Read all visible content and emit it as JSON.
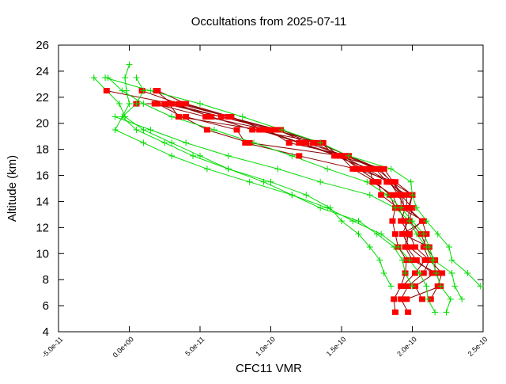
{
  "chart_data": {
    "type": "line",
    "title": "Occultations from 2025-07-11",
    "xlabel": "CFC11 VMR",
    "ylabel": "Altitude (km)",
    "xlim": [
      -5e-11,
      2.5e-10
    ],
    "ylim": [
      4,
      26
    ],
    "x_ticks": [
      -5e-11,
      0,
      5e-11,
      1e-10,
      1.5e-10,
      2e-10,
      2.5e-10
    ],
    "x_tick_labels": [
      "-5.0e-11",
      "0.0e+00",
      "5.0e-11",
      "1.0e-10",
      "1.5e-10",
      "2.0e-10",
      "2.5e-10"
    ],
    "y_ticks": [
      4,
      6,
      8,
      10,
      12,
      14,
      16,
      18,
      20,
      22,
      24,
      26
    ],
    "y_tick_labels": [
      "4",
      "6",
      "8",
      "10",
      "12",
      "14",
      "16",
      "18",
      "20",
      "22",
      "24",
      "26"
    ],
    "grid": false,
    "legend": "none",
    "colors": {
      "retrieval": "#ff0000",
      "apriori": "#00dd00",
      "profile_line": "#8b0000"
    },
    "series": [
      {
        "style": "red-square",
        "points": [
          [
            1.88e-10,
            5.5
          ],
          [
            1.87e-10,
            6.5
          ],
          [
            1.92e-10,
            7.5
          ],
          [
            1.95e-10,
            8.5
          ],
          [
            1.96e-10,
            9.5
          ],
          [
            1.9e-10,
            10.5
          ],
          [
            1.88e-10,
            11.5
          ],
          [
            1.86e-10,
            12.5
          ],
          [
            1.88e-10,
            13.5
          ],
          [
            1.84e-10,
            14.5
          ],
          [
            1.74e-10,
            15.5
          ],
          [
            1.58e-10,
            16.5
          ],
          [
            1.49e-10,
            17.5
          ],
          [
            1.21e-10,
            18.5
          ],
          [
            9.5e-11,
            19.5
          ],
          [
            7.2e-11,
            20.5
          ],
          [
            4e-11,
            21.5
          ],
          [
            2e-11,
            22.5
          ]
        ]
      },
      {
        "style": "red-square",
        "points": [
          [
            1.97e-10,
            5.5
          ],
          [
            1.92e-10,
            6.5
          ],
          [
            1.97e-10,
            7.5
          ],
          [
            2.08e-10,
            8.5
          ],
          [
            2.12e-10,
            9.5
          ],
          [
            2.02e-10,
            10.5
          ],
          [
            1.98e-10,
            11.5
          ],
          [
            1.92e-10,
            12.5
          ],
          [
            1.95e-10,
            13.5
          ],
          [
            1.9e-10,
            14.5
          ],
          [
            1.84e-10,
            15.5
          ],
          [
            1.68e-10,
            16.5
          ],
          [
            1.5e-10,
            17.5
          ],
          [
            1.3e-10,
            18.5
          ],
          [
            1.04e-10,
            19.5
          ],
          [
            7e-11,
            20.5
          ],
          [
            3.5e-11,
            21.5
          ],
          [
            9e-12,
            22.5
          ]
        ]
      },
      {
        "style": "red-square",
        "points": [
          [
            2.07e-10,
            6.5
          ],
          [
            2.02e-10,
            7.5
          ],
          [
            2.16e-10,
            8.5
          ],
          [
            2.16e-10,
            9.5
          ],
          [
            2.1e-10,
            10.5
          ],
          [
            2.06e-10,
            11.5
          ],
          [
            1.98e-10,
            12.5
          ],
          [
            2e-10,
            13.5
          ],
          [
            1.92e-10,
            14.5
          ],
          [
            1.86e-10,
            15.5
          ],
          [
            1.75e-10,
            16.5
          ],
          [
            1.55e-10,
            17.5
          ],
          [
            1.33e-10,
            18.5
          ],
          [
            1.07e-10,
            19.5
          ],
          [
            6.5e-11,
            20.5
          ],
          [
            3e-11,
            21.5
          ],
          [
            1.9e-11,
            22.5
          ]
        ]
      },
      {
        "style": "red-square",
        "points": [
          [
            2.13e-10,
            6.5
          ],
          [
            2.18e-10,
            7.5
          ],
          [
            2.21e-10,
            8.5
          ],
          [
            2.12e-10,
            9.5
          ],
          [
            2.08e-10,
            10.5
          ],
          [
            2.1e-10,
            11.5
          ],
          [
            2.07e-10,
            12.5
          ],
          [
            1.96e-10,
            13.5
          ],
          [
            1.96e-10,
            14.5
          ],
          [
            1.82e-10,
            15.5
          ],
          [
            1.74e-10,
            16.5
          ],
          [
            1.53e-10,
            17.5
          ],
          [
            1.25e-10,
            18.5
          ],
          [
            1.05e-10,
            19.5
          ],
          [
            7e-11,
            20.5
          ],
          [
            3.8e-11,
            21.5
          ],
          [
            5e-12,
            21.5
          ]
        ]
      },
      {
        "style": "red-square",
        "points": [
          [
            1.96e-10,
            6.5
          ],
          [
            2.2e-10,
            7.5
          ],
          [
            2.17e-10,
            8.5
          ],
          [
            2e-10,
            9.5
          ],
          [
            1.95e-10,
            10.5
          ],
          [
            1.96e-10,
            11.5
          ],
          [
            1.95e-10,
            12.5
          ],
          [
            1.9e-10,
            13.5
          ],
          [
            1.86e-10,
            14.5
          ],
          [
            1.72e-10,
            15.5
          ],
          [
            1.7e-10,
            16.5
          ],
          [
            1.45e-10,
            17.5
          ],
          [
            1.36e-10,
            18.5
          ],
          [
            8.7e-11,
            19.5
          ],
          [
            5.8e-11,
            20.5
          ],
          [
            3e-11,
            21.5
          ],
          [
            -1.6e-11,
            22.5
          ]
        ]
      },
      {
        "style": "red-square",
        "points": [
          [
            1.93e-10,
            7.5
          ],
          [
            2.02e-10,
            8.5
          ],
          [
            2.09e-10,
            9.5
          ],
          [
            1.98e-10,
            10.5
          ],
          [
            1.93e-10,
            11.5
          ],
          [
            2.08e-10,
            12.5
          ],
          [
            1.92e-10,
            13.5
          ],
          [
            1.92e-10,
            14.5
          ],
          [
            1.83e-10,
            15.5
          ],
          [
            1.65e-10,
            16.5
          ],
          [
            1.48e-10,
            17.5
          ],
          [
            1.37e-10,
            18.5
          ],
          [
            1.02e-10,
            19.5
          ],
          [
            6.5e-11,
            20.5
          ],
          [
            2.5e-11,
            21.5
          ]
        ]
      },
      {
        "style": "red-square",
        "points": [
          [
            2.14e-10,
            8.5
          ],
          [
            2.03e-10,
            9.5
          ],
          [
            1.96e-10,
            10.5
          ],
          [
            1.97e-10,
            11.5
          ],
          [
            2.07e-10,
            12.5
          ],
          [
            1.97e-10,
            13.5
          ],
          [
            2e-10,
            14.5
          ],
          [
            1.85e-10,
            15.5
          ],
          [
            1.77e-10,
            16.5
          ],
          [
            1.55e-10,
            17.5
          ],
          [
            1.13e-10,
            18.5
          ],
          [
            9.8e-11,
            19.5
          ],
          [
            5.4e-11,
            20.5
          ],
          [
            1.8e-11,
            21.5
          ]
        ]
      },
      {
        "style": "red-square",
        "points": [
          [
            2.12e-10,
            10.5
          ],
          [
            1.93e-10,
            11.5
          ],
          [
            1.97e-10,
            12.5
          ],
          [
            1.98e-10,
            13.5
          ],
          [
            2e-10,
            14.5
          ],
          [
            1.88e-10,
            15.5
          ],
          [
            1.6e-10,
            16.5
          ],
          [
            1.2e-10,
            17.5
          ],
          [
            8.2e-11,
            18.5
          ],
          [
            7.6e-11,
            19.5
          ],
          [
            4e-11,
            20.5
          ],
          [
            3.5e-11,
            20.5
          ]
        ]
      },
      {
        "style": "red-square",
        "points": [
          [
            1.9e-10,
            13.5
          ],
          [
            1.78e-10,
            14.5
          ],
          [
            1.76e-10,
            15.5
          ],
          [
            1.62e-10,
            16.5
          ],
          [
            1.5e-10,
            17.5
          ],
          [
            8.5e-11,
            18.5
          ],
          [
            5.5e-11,
            19.5
          ],
          [
            2e-11,
            21.5
          ]
        ]
      },
      {
        "style": "red-square",
        "points": [
          [
            1.94e-10,
            13.5
          ],
          [
            1.93e-10,
            14.5
          ],
          [
            1.8e-10,
            16.5
          ],
          [
            1.47e-10,
            17.5
          ],
          [
            1.2e-10,
            18.5
          ],
          [
            9.2e-11,
            19.5
          ],
          [
            3.5e-11,
            20.5
          ],
          [
            2.8e-11,
            21.5
          ]
        ]
      },
      {
        "style": "green-plus",
        "points": [
          [
            2.48e-10,
            7.5
          ],
          [
            2.39e-10,
            8.5
          ],
          [
            2.28e-10,
            9.5
          ],
          [
            2.26e-10,
            10.5
          ],
          [
            2.18e-10,
            11.5
          ],
          [
            2.1e-10,
            12.5
          ],
          [
            2.03e-10,
            13.5
          ],
          [
            2e-10,
            14.5
          ],
          [
            1.99e-10,
            15.5
          ],
          [
            1.85e-10,
            16.5
          ],
          [
            1.55e-10,
            17.5
          ],
          [
            1.35e-10,
            18.5
          ],
          [
            1.08e-10,
            19.5
          ],
          [
            8e-11,
            20.5
          ],
          [
            5e-11,
            21.5
          ],
          [
            1.5e-11,
            22.5
          ],
          [
            -1.7e-11,
            23.5
          ]
        ]
      },
      {
        "style": "green-plus",
        "points": [
          [
            2.35e-10,
            6.5
          ],
          [
            2.3e-10,
            7.5
          ],
          [
            2.28e-10,
            8.5
          ],
          [
            2.15e-10,
            9.5
          ],
          [
            2.12e-10,
            10.5
          ],
          [
            2.08e-10,
            11.5
          ],
          [
            2e-10,
            12.5
          ],
          [
            1.92e-10,
            13.5
          ],
          [
            1.82e-10,
            14.5
          ],
          [
            1.68e-10,
            15.5
          ],
          [
            1.4e-10,
            16.5
          ],
          [
            1.15e-10,
            17.5
          ],
          [
            8.8e-11,
            18.5
          ],
          [
            6e-11,
            19.5
          ],
          [
            3e-11,
            20.5
          ],
          [
            1e-11,
            21.5
          ],
          [
            -5e-12,
            22.5
          ],
          [
            -1.5e-11,
            23.5
          ]
        ]
      },
      {
        "style": "green-plus",
        "points": [
          [
            2.24e-10,
            5.5
          ],
          [
            2.27e-10,
            6.5
          ],
          [
            2.2e-10,
            7.5
          ],
          [
            2.17e-10,
            8.5
          ],
          [
            2.14e-10,
            9.5
          ],
          [
            2.1e-10,
            10.5
          ],
          [
            2.03e-10,
            11.5
          ],
          [
            1.98e-10,
            12.5
          ],
          [
            1.88e-10,
            13.5
          ],
          [
            1.7e-10,
            14.5
          ],
          [
            1.35e-10,
            15.5
          ],
          [
            1.05e-10,
            16.5
          ],
          [
            7e-11,
            17.5
          ],
          [
            4e-11,
            18.5
          ],
          [
            1.5e-11,
            19.5
          ],
          [
            -1e-11,
            20.5
          ]
        ]
      },
      {
        "style": "green-plus",
        "points": [
          [
            2.16e-10,
            5.5
          ],
          [
            2.11e-10,
            6.5
          ],
          [
            2.1e-10,
            7.5
          ],
          [
            2.05e-10,
            8.5
          ],
          [
            1.98e-10,
            9.5
          ],
          [
            1.9e-10,
            10.5
          ],
          [
            1.78e-10,
            11.5
          ],
          [
            1.58e-10,
            12.5
          ],
          [
            1.4e-10,
            13.5
          ],
          [
            1.15e-10,
            14.5
          ],
          [
            9.5e-11,
            15.5
          ],
          [
            7e-11,
            16.5
          ],
          [
            5e-11,
            17.5
          ],
          [
            3e-11,
            18.5
          ],
          [
            1e-11,
            19.5
          ],
          [
            -3e-12,
            20.5
          ],
          [
            -7e-12,
            21.5
          ],
          [
            -2.5e-11,
            23.5
          ]
        ]
      },
      {
        "style": "green-plus",
        "points": [
          [
            2e-10,
            7.5
          ],
          [
            1.95e-10,
            8.5
          ],
          [
            1.93e-10,
            9.5
          ],
          [
            1.87e-10,
            10.5
          ],
          [
            1.75e-10,
            11.5
          ],
          [
            1.62e-10,
            12.5
          ],
          [
            1.35e-10,
            13.5
          ],
          [
            1.15e-10,
            14.5
          ],
          [
            8.5e-11,
            15.5
          ],
          [
            5.5e-11,
            16.5
          ],
          [
            3e-11,
            17.5
          ],
          [
            1e-11,
            18.5
          ],
          [
            -1e-11,
            19.5
          ],
          [
            -5e-12,
            20.5
          ],
          [
            5e-12,
            21.5
          ],
          [
            1e-11,
            22.5
          ],
          [
            5e-12,
            23.5
          ]
        ]
      },
      {
        "style": "green-plus",
        "points": [
          [
            1.85e-10,
            7.5
          ],
          [
            1.8e-10,
            8.5
          ],
          [
            1.77e-10,
            9.5
          ],
          [
            1.7e-10,
            10.5
          ],
          [
            1.62e-10,
            11.5
          ],
          [
            1.5e-10,
            12.5
          ],
          [
            1.42e-10,
            13.5
          ],
          [
            1.25e-10,
            14.5
          ],
          [
            1e-10,
            15.5
          ],
          [
            7e-11,
            16.5
          ],
          [
            4.5e-11,
            17.5
          ],
          [
            2.5e-11,
            18.5
          ],
          [
            5e-12,
            19.5
          ],
          [
            -5e-12,
            20.5
          ],
          [
            0.0,
            21.5
          ],
          [
            -2e-12,
            22.5
          ],
          [
            -3e-12,
            23.5
          ],
          [
            0.0,
            24.5
          ]
        ]
      }
    ]
  }
}
